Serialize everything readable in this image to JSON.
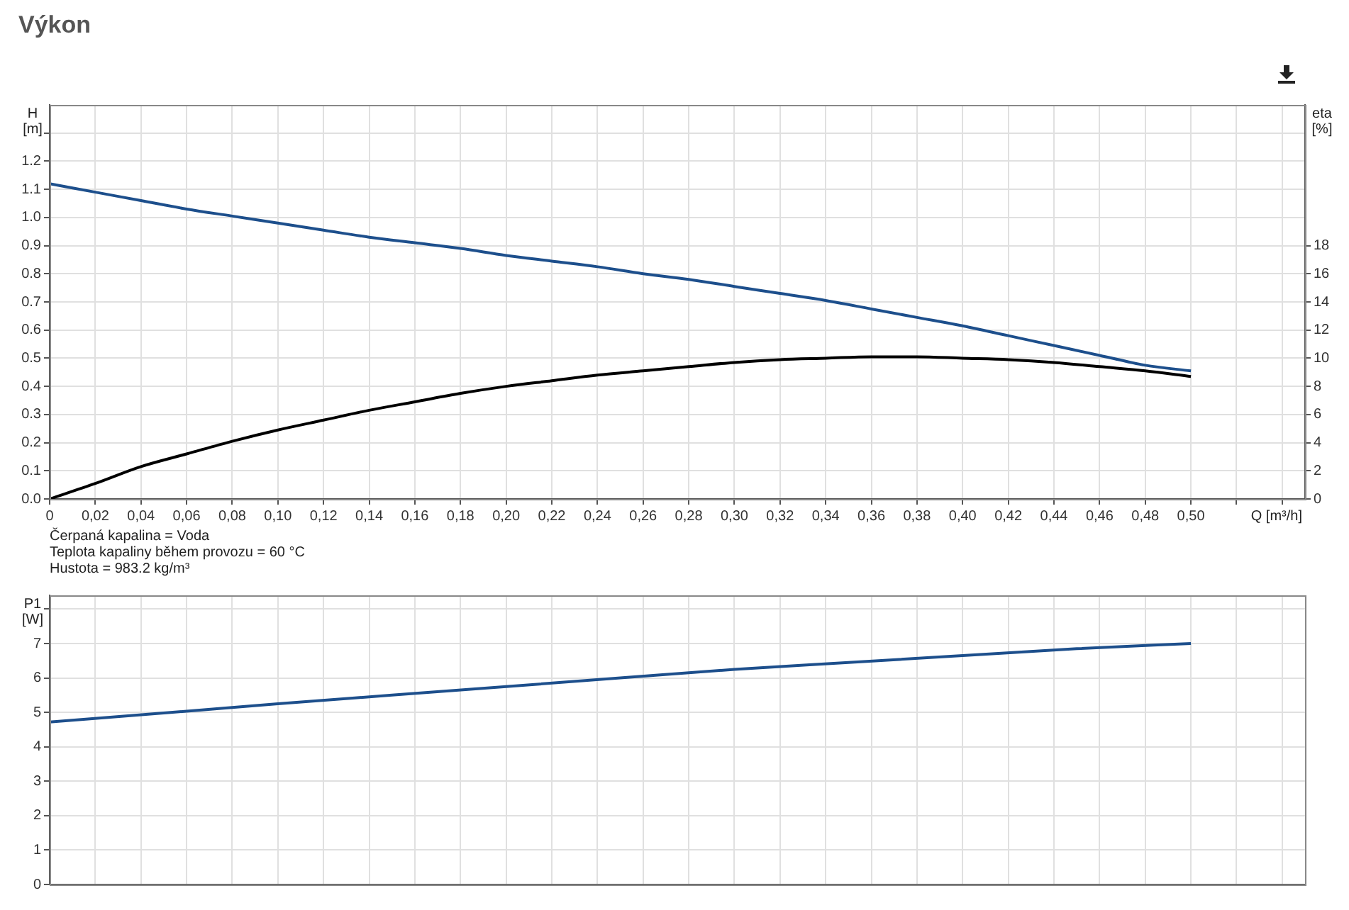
{
  "chart_data": [
    {
      "type": "line",
      "title": "Výkon",
      "ylabel": "H [m]",
      "y2label": "eta [%]",
      "xlabel": "Q [m³/h]",
      "annotations": [
        "Čerpaná kapalina = Voda",
        "Teplota kapaliny během provozu = 60 °C",
        "Hustota = 983.2 kg/m³"
      ],
      "x": [
        0,
        0.02,
        0.04,
        0.06,
        0.08,
        0.1,
        0.12,
        0.14,
        0.16,
        0.18,
        0.2,
        0.22,
        0.24,
        0.26,
        0.28,
        0.3,
        0.32,
        0.34,
        0.36,
        0.38,
        0.4,
        0.42,
        0.44,
        0.46,
        0.48,
        0.5
      ],
      "series": [
        {
          "color": "#1d4f8c",
          "values": [
            1.12,
            1.09,
            1.06,
            1.03,
            1.005,
            0.98,
            0.955,
            0.93,
            0.91,
            0.89,
            0.865,
            0.845,
            0.825,
            0.8,
            0.78,
            0.755,
            0.73,
            0.705,
            0.675,
            0.645,
            0.615,
            0.58,
            0.545,
            0.51,
            0.475,
            0.455
          ]
        },
        {
          "color": "#000000",
          "axis": "y2",
          "values": [
            0,
            1.1,
            2.3,
            3.2,
            4.1,
            4.9,
            5.6,
            6.3,
            6.9,
            7.5,
            8.0,
            8.4,
            8.8,
            9.1,
            9.4,
            9.7,
            9.9,
            10.0,
            10.1,
            10.1,
            10.0,
            9.9,
            9.7,
            9.4,
            9.1,
            8.7
          ]
        }
      ],
      "xlim": [
        0,
        0.55
      ],
      "xticks": [
        0,
        {
          "value": 0.02,
          "label": "0,02"
        },
        {
          "value": 0.04,
          "label": "0,04"
        },
        {
          "value": 0.06,
          "label": "0,06"
        },
        {
          "value": 0.08,
          "label": "0,08"
        },
        {
          "value": 0.1,
          "label": "0,10"
        },
        {
          "value": 0.12,
          "label": "0,12"
        },
        {
          "value": 0.14,
          "label": "0,14"
        },
        {
          "value": 0.16,
          "label": "0,16"
        },
        {
          "value": 0.18,
          "label": "0,18"
        },
        {
          "value": 0.2,
          "label": "0,20"
        },
        {
          "value": 0.22,
          "label": "0,22"
        },
        {
          "value": 0.24,
          "label": "0,24"
        },
        {
          "value": 0.26,
          "label": "0,26"
        },
        {
          "value": 0.28,
          "label": "0,28"
        },
        {
          "value": 0.3,
          "label": "0,30"
        },
        {
          "value": 0.32,
          "label": "0,32"
        },
        {
          "value": 0.34,
          "label": "0,34"
        },
        {
          "value": 0.36,
          "label": "0,36"
        },
        {
          "value": 0.38,
          "label": "0,38"
        },
        {
          "value": 0.4,
          "label": "0,40"
        },
        {
          "value": 0.42,
          "label": "0,42"
        },
        {
          "value": 0.44,
          "label": "0,44"
        },
        {
          "value": 0.46,
          "label": "0,46"
        },
        {
          "value": 0.48,
          "label": "0,48"
        },
        {
          "value": 0.5,
          "label": "0,50"
        },
        {
          "value": 0.52,
          "label": null
        },
        {
          "value": 0.54,
          "label": null
        }
      ],
      "ylim": [
        0,
        1.4
      ],
      "yticks": [
        {
          "value": 0,
          "label": "0.0"
        },
        0.1,
        0.2,
        0.3,
        0.4,
        0.5,
        0.6,
        0.7,
        0.8,
        0.9,
        {
          "value": 1,
          "label": "1.0"
        },
        1.1,
        1.2,
        {
          "value": 1.3,
          "label": null
        }
      ],
      "y2lim": [
        0,
        28
      ],
      "y2ticks": [
        0,
        2,
        4,
        6,
        8,
        10,
        12,
        14,
        16,
        18
      ],
      "grid": true,
      "marker": "none",
      "line_style": "solid"
    },
    {
      "type": "line",
      "ylabel": "P1 [W]",
      "x": [
        0,
        0.05,
        0.1,
        0.15,
        0.2,
        0.25,
        0.3,
        0.35,
        0.4,
        0.45,
        0.5
      ],
      "series": [
        {
          "color": "#1d4f8c",
          "values": [
            4.72,
            4.98,
            5.25,
            5.5,
            5.75,
            6.0,
            6.25,
            6.45,
            6.65,
            6.85,
            7.0
          ]
        }
      ],
      "xlim": [
        0,
        0.55
      ],
      "xticks": [
        0,
        0.02,
        0.04,
        0.06,
        0.08,
        0.1,
        0.12,
        0.14,
        0.16,
        0.18,
        0.2,
        0.22,
        0.24,
        0.26,
        0.28,
        0.3,
        0.32,
        0.34,
        0.36,
        0.38,
        0.4,
        0.42,
        0.44,
        0.46,
        0.48,
        0.5,
        0.52,
        0.54
      ],
      "ylim": [
        0,
        8.4
      ],
      "yticks": [
        0,
        1,
        2,
        3,
        4,
        5,
        6,
        7,
        {
          "value": 8,
          "label": null
        }
      ],
      "tick_labels": "y",
      "grid": true,
      "marker": "none",
      "line_style": "solid"
    }
  ]
}
